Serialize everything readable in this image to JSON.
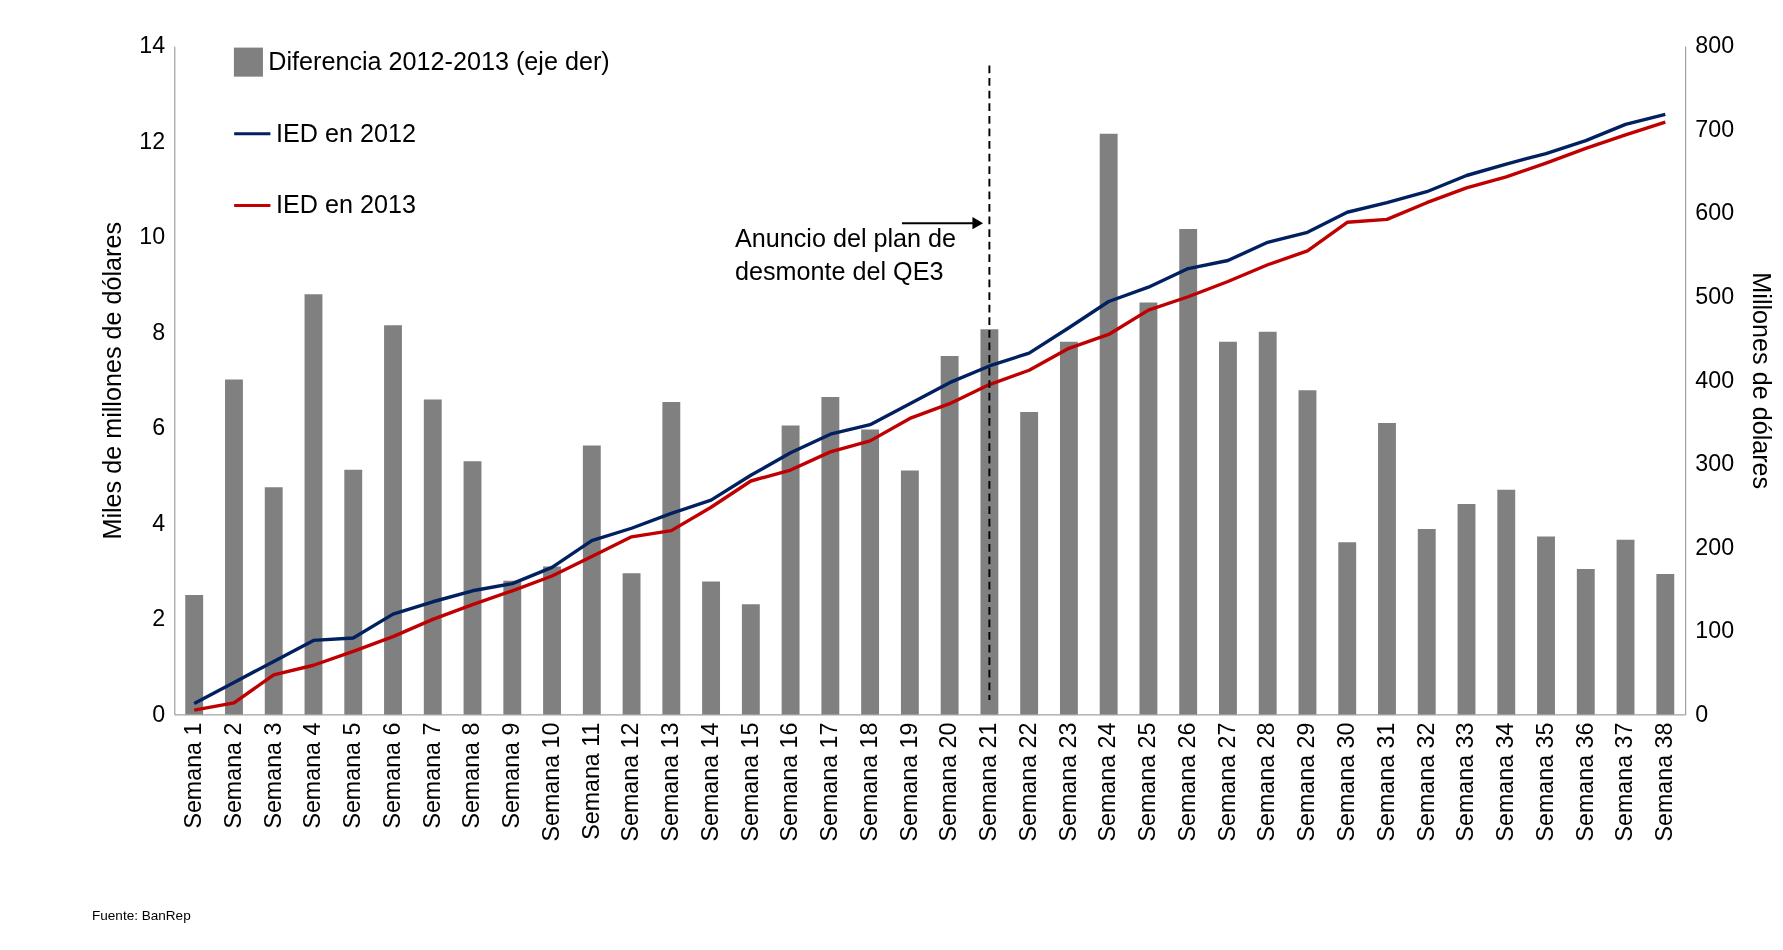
{
  "chart_data": {
    "type": "bar",
    "categories": [
      "Semana 1",
      "Semana 2",
      "Semana 3",
      "Semana 4",
      "Semana 5",
      "Semana 6",
      "Semana 7",
      "Semana 8",
      "Semana 9",
      "Semana 10",
      "Semana 11",
      "Semana 12",
      "Semana 13",
      "Semana 14",
      "Semana 15",
      "Semana 16",
      "Semana 17",
      "Semana 18",
      "Semana 19",
      "Semana 20",
      "Semana 21",
      "Semana 22",
      "Semana 23",
      "Semana 24",
      "Semana 25",
      "Semana 26",
      "Semana 27",
      "Semana 28",
      "Semana 29",
      "Semana 30",
      "Semana 31",
      "Semana 32",
      "Semana 33",
      "Semana 34",
      "Semana 35",
      "Semana 36",
      "Semana 37",
      "Semana 38"
    ],
    "series": [
      {
        "name": "Diferencia 2012-2013 (eje der)",
        "axis": "y2",
        "color": "#808080",
        "values": [
          143,
          401,
          272,
          503,
          293,
          466,
          377,
          303,
          160,
          177,
          322,
          169,
          374,
          159,
          132,
          346,
          380,
          341,
          292,
          429,
          461,
          362,
          446,
          695,
          493,
          581,
          446,
          458,
          388,
          206,
          349,
          222,
          252,
          269,
          213,
          174,
          209,
          168
        ]
      },
      {
        "name": "IED en 2012",
        "type": "line",
        "color": "#002060",
        "values": [
          0.23,
          0.67,
          1.11,
          1.55,
          1.6,
          2.1,
          2.36,
          2.59,
          2.74,
          3.08,
          3.64,
          3.9,
          4.21,
          4.49,
          5.01,
          5.48,
          5.87,
          6.07,
          6.51,
          6.95,
          7.3,
          7.57,
          8.1,
          8.65,
          8.95,
          9.34,
          9.51,
          9.89,
          10.1,
          10.52,
          10.72,
          10.95,
          11.29,
          11.53,
          11.75,
          12.02,
          12.36,
          12.57
        ]
      },
      {
        "name": "IED en 2013",
        "type": "line",
        "color": "#c00000",
        "values": [
          0.09,
          0.24,
          0.83,
          1.03,
          1.32,
          1.63,
          1.99,
          2.3,
          2.59,
          2.9,
          3.31,
          3.72,
          3.85,
          4.34,
          4.89,
          5.12,
          5.5,
          5.73,
          6.2,
          6.51,
          6.91,
          7.21,
          7.67,
          7.96,
          8.47,
          8.75,
          9.07,
          9.42,
          9.71,
          10.31,
          10.37,
          10.72,
          11.03,
          11.26,
          11.55,
          11.86,
          12.14,
          12.41
        ]
      }
    ],
    "ylabel": "Miles de millones de dólares",
    "y2label": "Millones de dólares",
    "ylim": [
      0,
      14
    ],
    "yticks": [
      0,
      2,
      4,
      6,
      8,
      10,
      12,
      14
    ],
    "y2lim": [
      0,
      800
    ],
    "y2ticks": [
      0,
      100,
      200,
      300,
      400,
      500,
      600,
      700,
      800
    ],
    "ref_lines": [
      {
        "axis": "x",
        "value": "Semana 21",
        "label": "Anuncio del plan de\ndesmonte del QE3",
        "line_style": "dashed",
        "color": "#000000"
      }
    ],
    "annotations": [
      "Fuente: BanRep"
    ],
    "legend": "top left",
    "grid": false,
    "line_style": "solid",
    "marker": "none"
  }
}
